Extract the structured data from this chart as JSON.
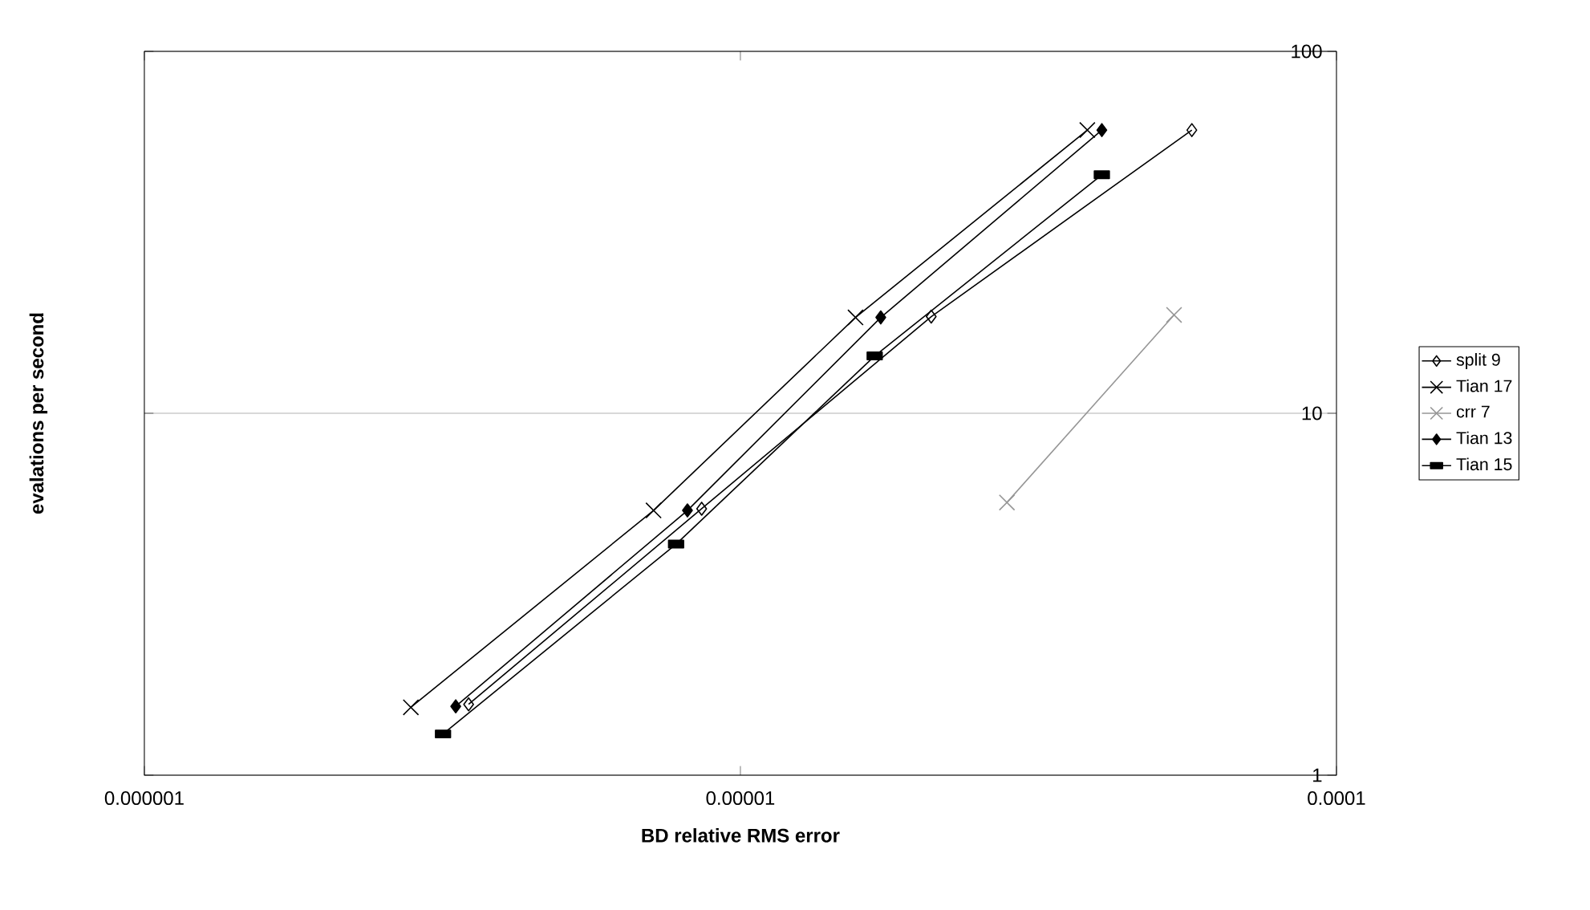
{
  "chart_data": {
    "type": "line",
    "xlabel": "BD relative RMS error",
    "ylabel": "evalations per second",
    "log": "xy",
    "grid": "y",
    "legend": "right",
    "xlim": [
      1e-06,
      0.0001
    ],
    "ylim": [
      1,
      100
    ],
    "xticks": [
      {
        "value": 1e-06,
        "label": "0.000001"
      },
      {
        "value": 1e-05,
        "label": "0.00001"
      },
      {
        "value": 0.0001,
        "label": "0.0001"
      }
    ],
    "yticks": [
      1,
      10,
      100
    ],
    "series": [
      {
        "name": "split 9",
        "color": "#000000",
        "marker": "diamond",
        "x": [
          3.5e-06,
          8.61e-06,
          2.09e-05,
          5.72e-05
        ],
        "values": [
          1.57,
          5.45,
          18.5,
          60.6
        ]
      },
      {
        "name": "Tian 17",
        "color": "#000000",
        "marker": "cross",
        "x": [
          2.8e-06,
          7.15e-06,
          1.56e-05,
          3.82e-05
        ],
        "values": [
          1.54,
          5.39,
          18.4,
          60.6
        ]
      },
      {
        "name": "crr 7",
        "color": "#969696",
        "marker": "cross",
        "x": [
          2.8e-05,
          5.34e-05
        ],
        "values": [
          5.67,
          18.7
        ]
      },
      {
        "name": "Tian 13",
        "color": "#000000",
        "marker": "diamond",
        "x": [
          3.33e-06,
          8.15e-06,
          1.72e-05,
          4.04e-05
        ],
        "values": [
          1.55,
          5.39,
          18.4,
          60.6
        ]
      },
      {
        "name": "Tian 15",
        "color": "#000000",
        "marker": "square",
        "x": [
          3.17e-06,
          7.8e-06,
          1.68e-05,
          4.04e-05
        ],
        "values": [
          1.3,
          4.35,
          14.4,
          45.6
        ]
      }
    ]
  }
}
